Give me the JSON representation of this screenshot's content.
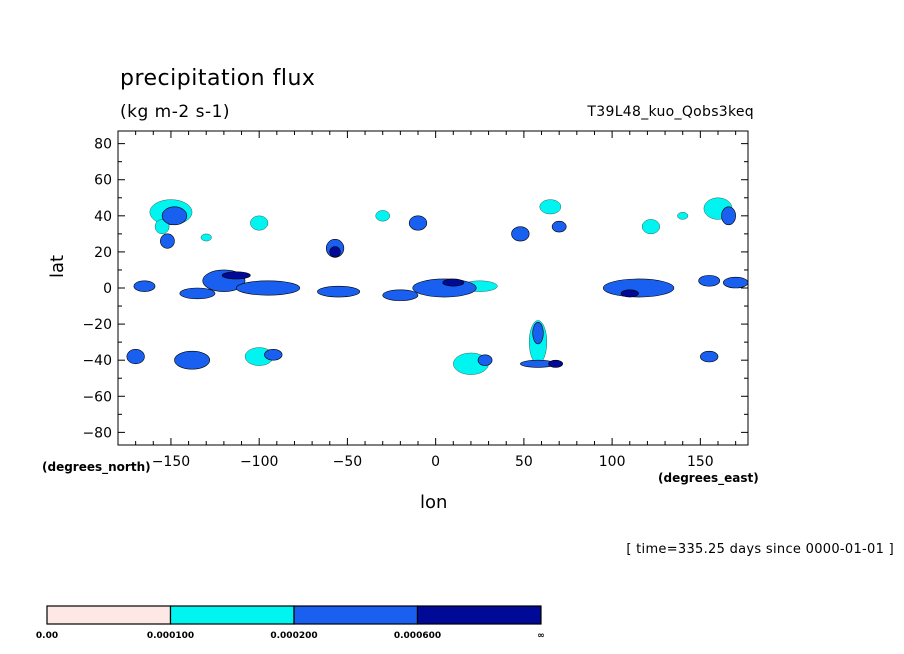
{
  "chart_data": {
    "type": "heatmap",
    "title": "precipitation flux",
    "units": "(kg m-2 s-1)",
    "run_name": "T39L48_kuo_Qobs3keq",
    "xlabel": "lon",
    "ylabel": "lat",
    "x_unit_tag": "(degrees_east)",
    "y_unit_tag": "(degrees_north)",
    "timestamp": "[ time=335.25 days since 0000-01-01 ]",
    "xlim": [
      -180,
      177
    ],
    "ylim": [
      -87,
      87
    ],
    "x_ticks": [
      -150,
      -100,
      -50,
      0,
      50,
      100,
      150
    ],
    "x_tick_labels": [
      "−150",
      "−100",
      "−50",
      "0",
      "50",
      "100",
      "150"
    ],
    "y_ticks": [
      -80,
      -60,
      -40,
      -20,
      0,
      20,
      40,
      60,
      80
    ],
    "y_tick_labels": [
      "−80",
      "−60",
      "−40",
      "−20",
      "0",
      "20",
      "40",
      "60",
      "80"
    ],
    "colorbar": {
      "colors": [
        "#fde8e6",
        "#00f5f0",
        "#1a60f0",
        "#000a96"
      ],
      "labels": [
        "0.00",
        "0.000100",
        "0.000200",
        "0.000600",
        "∞"
      ]
    },
    "regions": [
      {
        "lon": -150,
        "lat": 42,
        "rlon": 12,
        "rlat": 7,
        "level": 1
      },
      {
        "lon": -148,
        "lat": 40,
        "rlon": 7,
        "rlat": 5,
        "level": 2
      },
      {
        "lon": -155,
        "lat": 34,
        "rlon": 4,
        "rlat": 4,
        "level": 1
      },
      {
        "lon": -152,
        "lat": 26,
        "rlon": 4,
        "rlat": 4,
        "level": 2
      },
      {
        "lon": -165,
        "lat": 1,
        "rlon": 6,
        "rlat": 3,
        "level": 2
      },
      {
        "lon": -120,
        "lat": 4,
        "rlon": 12,
        "rlat": 6,
        "level": 2
      },
      {
        "lon": -113,
        "lat": 7,
        "rlon": 8,
        "rlat": 2,
        "level": 3
      },
      {
        "lon": -95,
        "lat": 0,
        "rlon": 18,
        "rlat": 4,
        "level": 2
      },
      {
        "lon": -135,
        "lat": -3,
        "rlon": 10,
        "rlat": 3,
        "level": 2
      },
      {
        "lon": -100,
        "lat": 36,
        "rlon": 5,
        "rlat": 4,
        "level": 1
      },
      {
        "lon": -57,
        "lat": 22,
        "rlon": 5,
        "rlat": 5,
        "level": 2
      },
      {
        "lon": -57,
        "lat": 20,
        "rlon": 3,
        "rlat": 3,
        "level": 3
      },
      {
        "lon": -55,
        "lat": -2,
        "rlon": 12,
        "rlat": 3,
        "level": 2
      },
      {
        "lon": -20,
        "lat": -4,
        "rlon": 10,
        "rlat": 3,
        "level": 2
      },
      {
        "lon": 5,
        "lat": 0,
        "rlon": 18,
        "rlat": 5,
        "level": 2
      },
      {
        "lon": 10,
        "lat": 3,
        "rlon": 6,
        "rlat": 2,
        "level": 3
      },
      {
        "lon": 25,
        "lat": 1,
        "rlon": 10,
        "rlat": 3,
        "level": 1
      },
      {
        "lon": -10,
        "lat": 36,
        "rlon": 5,
        "rlat": 4,
        "level": 2
      },
      {
        "lon": 48,
        "lat": 30,
        "rlon": 5,
        "rlat": 4,
        "level": 2
      },
      {
        "lon": 65,
        "lat": 45,
        "rlon": 6,
        "rlat": 4,
        "level": 1
      },
      {
        "lon": 70,
        "lat": 34,
        "rlon": 4,
        "rlat": 3,
        "level": 2
      },
      {
        "lon": 115,
        "lat": 0,
        "rlon": 20,
        "rlat": 5,
        "level": 2
      },
      {
        "lon": 110,
        "lat": -3,
        "rlon": 5,
        "rlat": 2,
        "level": 3
      },
      {
        "lon": 155,
        "lat": 4,
        "rlon": 6,
        "rlat": 3,
        "level": 2
      },
      {
        "lon": 170,
        "lat": 3,
        "rlon": 7,
        "rlat": 3,
        "level": 2
      },
      {
        "lon": 160,
        "lat": 44,
        "rlon": 8,
        "rlat": 6,
        "level": 1
      },
      {
        "lon": 166,
        "lat": 40,
        "rlon": 4,
        "rlat": 5,
        "level": 2
      },
      {
        "lon": 122,
        "lat": 34,
        "rlon": 5,
        "rlat": 4,
        "level": 1
      },
      {
        "lon": -138,
        "lat": -40,
        "rlon": 10,
        "rlat": 5,
        "level": 2
      },
      {
        "lon": -100,
        "lat": -38,
        "rlon": 8,
        "rlat": 5,
        "level": 1
      },
      {
        "lon": -92,
        "lat": -37,
        "rlon": 5,
        "rlat": 3,
        "level": 2
      },
      {
        "lon": -170,
        "lat": -38,
        "rlon": 5,
        "rlat": 4,
        "level": 2
      },
      {
        "lon": 58,
        "lat": -30,
        "rlon": 5,
        "rlat": 12,
        "level": 1
      },
      {
        "lon": 58,
        "lat": -25,
        "rlon": 3,
        "rlat": 6,
        "level": 2
      },
      {
        "lon": 58,
        "lat": -42,
        "rlon": 10,
        "rlat": 2,
        "level": 2
      },
      {
        "lon": 20,
        "lat": -42,
        "rlon": 10,
        "rlat": 6,
        "level": 1
      },
      {
        "lon": 28,
        "lat": -40,
        "rlon": 4,
        "rlat": 3,
        "level": 2
      },
      {
        "lon": 155,
        "lat": -38,
        "rlon": 5,
        "rlat": 3,
        "level": 2
      },
      {
        "lon": -130,
        "lat": 28,
        "rlon": 3,
        "rlat": 2,
        "level": 1
      },
      {
        "lon": 140,
        "lat": 40,
        "rlon": 3,
        "rlat": 2,
        "level": 1
      },
      {
        "lon": -30,
        "lat": 40,
        "rlon": 4,
        "rlat": 3,
        "level": 1
      },
      {
        "lon": 68,
        "lat": -42,
        "rlon": 4,
        "rlat": 2,
        "level": 3
      }
    ]
  }
}
